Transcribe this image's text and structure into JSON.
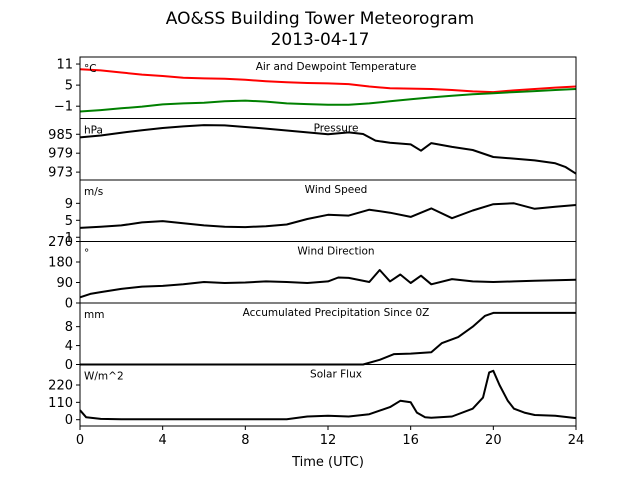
{
  "chart_data": {
    "type": "line",
    "title": "AO&SS Building Tower Meteorogram",
    "subtitle": "2013-04-17",
    "xlabel": "Time (UTC)",
    "xlim": [
      0,
      24
    ],
    "xticks": [
      0,
      4,
      8,
      12,
      16,
      20,
      24
    ],
    "panels": [
      {
        "name": "temperature",
        "title": "Air and Dewpoint Temperature",
        "unit": "°C",
        "ylim": [
          -4.5,
          13
        ],
        "yticks": [
          11,
          5,
          -1
        ],
        "series": [
          {
            "color": "#ff0000",
            "x": [
              0,
              1,
              2,
              3,
              4,
              5,
              6,
              7,
              8,
              9,
              10,
              11,
              12,
              13,
              14,
              15,
              16,
              17,
              18,
              19,
              20,
              21,
              22,
              23,
              24
            ],
            "y": [
              9.5,
              9.2,
              8.6,
              8.0,
              7.6,
              7.1,
              6.9,
              6.8,
              6.5,
              6.1,
              5.8,
              5.6,
              5.5,
              5.3,
              4.6,
              4.1,
              4.0,
              3.9,
              3.6,
              3.2,
              3.0,
              3.5,
              3.9,
              4.3,
              4.6
            ]
          },
          {
            "color": "#008000",
            "x": [
              0,
              1,
              2,
              3,
              4,
              5,
              6,
              7,
              8,
              9,
              10,
              11,
              12,
              13,
              14,
              15,
              16,
              17,
              18,
              19,
              20,
              21,
              22,
              23,
              24
            ],
            "y": [
              -2.5,
              -2.1,
              -1.6,
              -1.1,
              -0.5,
              -0.2,
              0.0,
              0.4,
              0.6,
              0.3,
              -0.2,
              -0.4,
              -0.6,
              -0.6,
              -0.2,
              0.4,
              1.0,
              1.5,
              2.0,
              2.4,
              2.7,
              3.0,
              3.3,
              3.6,
              3.9
            ]
          }
        ]
      },
      {
        "name": "pressure",
        "title": "Pressure",
        "unit": "hPa",
        "ylim": [
          970.5,
          990
        ],
        "yticks": [
          985,
          979,
          973
        ],
        "series": [
          {
            "color": "#000000",
            "x": [
              0,
              1,
              2,
              3,
              4,
              5,
              6,
              7,
              8,
              9,
              10,
              11,
              12,
              13,
              13.7,
              14.3,
              15,
              16,
              16.5,
              17,
              18,
              19,
              20,
              21,
              22,
              23,
              23.5,
              24
            ],
            "y": [
              984.0,
              984.6,
              985.5,
              986.3,
              987.0,
              987.5,
              987.9,
              987.8,
              987.3,
              986.8,
              986.2,
              985.6,
              985.0,
              985.6,
              985.1,
              983.0,
              982.3,
              981.8,
              979.8,
              982.2,
              981.0,
              980.0,
              977.8,
              977.3,
              976.7,
              975.8,
              974.6,
              972.5
            ]
          }
        ]
      },
      {
        "name": "wind-speed",
        "title": "Wind Speed",
        "unit": "m/s",
        "ylim": [
          0,
          14.5
        ],
        "yticks": [
          9,
          5,
          1
        ],
        "series": [
          {
            "color": "#000000",
            "x": [
              0,
              1,
              2,
              3,
              4,
              5,
              6,
              7,
              8,
              9,
              10,
              11,
              12,
              13,
              14,
              15,
              16,
              17,
              18,
              19,
              20,
              21,
              22,
              23,
              24
            ],
            "y": [
              3.2,
              3.5,
              3.8,
              4.5,
              4.8,
              4.3,
              3.8,
              3.5,
              3.4,
              3.6,
              4.0,
              5.3,
              6.3,
              6.1,
              7.5,
              6.8,
              5.8,
              7.8,
              5.5,
              7.3,
              8.8,
              9.0,
              7.7,
              8.2,
              8.6
            ]
          }
        ]
      },
      {
        "name": "wind-direction",
        "title": "Wind Direction",
        "unit": "°",
        "ylim": [
          0,
          270
        ],
        "yticks": [
          270,
          180,
          90,
          0
        ],
        "series": [
          {
            "color": "#000000",
            "x": [
              0,
              0.5,
              1,
              2,
              3,
              4,
              5,
              6,
              7,
              8,
              9,
              10,
              11,
              12,
              12.5,
              13,
              14,
              14.5,
              15,
              15.5,
              16,
              16.5,
              17,
              18,
              19,
              20,
              21,
              22,
              23,
              24
            ],
            "y": [
              25,
              40,
              48,
              62,
              72,
              75,
              82,
              92,
              88,
              90,
              95,
              92,
              88,
              95,
              112,
              110,
              92,
              145,
              95,
              125,
              88,
              120,
              82,
              105,
              95,
              92,
              95,
              98,
              100,
              102
            ]
          }
        ]
      },
      {
        "name": "precipitation",
        "title": "Accumulated Precipitation Since 0Z",
        "unit": "mm",
        "ylim": [
          0,
          13
        ],
        "yticks": [
          8,
          4,
          0
        ],
        "series": [
          {
            "color": "#000000",
            "x": [
              0,
              13.7,
              14.5,
              15.2,
              16.0,
              17.0,
              17.5,
              18.3,
              19.0,
              19.6,
              20.0,
              21.0,
              24.0
            ],
            "y": [
              0,
              0,
              1.0,
              2.2,
              2.3,
              2.6,
              4.5,
              5.8,
              8.0,
              10.3,
              10.9,
              10.9,
              10.9
            ]
          }
        ]
      },
      {
        "name": "solar-flux",
        "title": "Solar Flux",
        "unit": "W/m^2",
        "ylim": [
          -40,
          350
        ],
        "yticks": [
          220,
          110,
          0
        ],
        "series": [
          {
            "color": "#000000",
            "x": [
              0,
              0.3,
              1,
              2,
              4,
              6,
              8,
              10,
              11,
              12,
              13,
              14,
              15,
              15.5,
              16,
              16.3,
              16.7,
              17,
              18,
              19,
              19.5,
              19.8,
              20.0,
              20.3,
              20.7,
              21,
              21.5,
              22,
              23,
              24
            ],
            "y": [
              60,
              15,
              5,
              3,
              3,
              3,
              3,
              3,
              20,
              25,
              20,
              35,
              80,
              120,
              110,
              45,
              15,
              12,
              20,
              70,
              140,
              300,
              310,
              220,
              120,
              70,
              45,
              30,
              25,
              10
            ]
          }
        ]
      }
    ]
  }
}
